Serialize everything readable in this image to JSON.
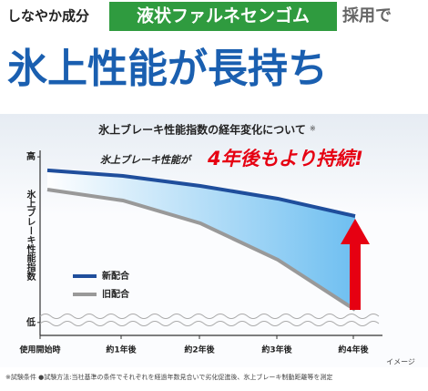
{
  "header": {
    "lead": "しなやか成分",
    "highlight": "液状ファルネセンゴム",
    "tail": "採用で",
    "title": "氷上性能が長持ち"
  },
  "chart_data": {
    "type": "line",
    "title": "氷上ブレーキ性能指数の経年変化について",
    "title_note": "※",
    "y_label": "氷上ブレーキ性能指数",
    "annotation": "氷上ブレーキ性能が",
    "callout": "4年後もより持続!",
    "image_note": "イメージ",
    "categories": [
      "使用開始時",
      "約1年後",
      "約2年後",
      "約3年後",
      "約4年後"
    ],
    "series": [
      {
        "name": "新配合",
        "color": "#1f4e9c",
        "values": [
          89.2,
          86.2,
          80.8,
          73.9,
          64.5
        ]
      },
      {
        "name": "旧配合",
        "color": "#999999",
        "values": [
          78.8,
          72.9,
          60.6,
          40.9,
          13.8
        ]
      }
    ],
    "ylim": [
      0,
      100
    ],
    "yticks": [
      {
        "value": 7,
        "label": "低"
      },
      {
        "value": 96.5,
        "label": "高"
      }
    ]
  },
  "footnote": "※試験条件 ●試験方法:当社基準の条件でそれぞれを経過年数見合いで劣化促進後、氷上ブレーキ制動距離等を測定"
}
